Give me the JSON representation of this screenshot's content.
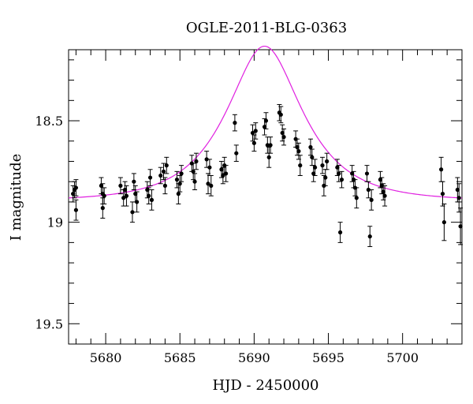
{
  "chart_data": {
    "type": "scatter",
    "title": "OGLE-2011-BLG-0363",
    "xlabel": "HJD - 2450000",
    "ylabel": "I magnitude",
    "xlim": [
      5677.5,
      5704
    ],
    "ylim": [
      19.6,
      18.15
    ],
    "y_inverted": true,
    "grid": false,
    "x_ticks": [
      5680,
      5685,
      5690,
      5695,
      5700
    ],
    "x_tick_labels": [
      "5680",
      "5685",
      "5690",
      "5695",
      "5700"
    ],
    "y_ticks": [
      18.5,
      19,
      19.5
    ],
    "y_tick_labels": [
      "18.5",
      "19",
      "19.5"
    ],
    "colors": {
      "points": "#000000",
      "model": "#e020e0"
    },
    "model": {
      "type": "microlensing",
      "t0": 5690.7,
      "u0": 0.55,
      "tE": 4.2,
      "baseline_mag": 18.895
    },
    "series": [
      {
        "points": [
          [
            5677.8,
            18.86,
            0.04
          ],
          [
            5677.9,
            18.84,
            0.04
          ],
          [
            5678.0,
            18.83,
            0.04
          ],
          [
            5678.0,
            18.94,
            0.05
          ],
          [
            5679.7,
            18.82,
            0.04
          ],
          [
            5679.8,
            18.86,
            0.05
          ],
          [
            5679.8,
            18.93,
            0.05
          ],
          [
            5679.9,
            18.87,
            0.04
          ],
          [
            5681.0,
            18.82,
            0.04
          ],
          [
            5681.2,
            18.88,
            0.04
          ],
          [
            5681.3,
            18.84,
            0.04
          ],
          [
            5681.4,
            18.87,
            0.05
          ],
          [
            5681.8,
            18.95,
            0.05
          ],
          [
            5681.9,
            18.8,
            0.04
          ],
          [
            5682.0,
            18.86,
            0.04
          ],
          [
            5682.1,
            18.9,
            0.05
          ],
          [
            5682.8,
            18.84,
            0.04
          ],
          [
            5682.9,
            18.87,
            0.04
          ],
          [
            5683.0,
            18.78,
            0.04
          ],
          [
            5683.1,
            18.89,
            0.05
          ],
          [
            5683.7,
            18.77,
            0.04
          ],
          [
            5683.9,
            18.75,
            0.04
          ],
          [
            5684.0,
            18.82,
            0.04
          ],
          [
            5684.1,
            18.72,
            0.04
          ],
          [
            5684.8,
            18.79,
            0.04
          ],
          [
            5684.9,
            18.86,
            0.05
          ],
          [
            5685.0,
            18.81,
            0.04
          ],
          [
            5685.1,
            18.76,
            0.04
          ],
          [
            5685.8,
            18.71,
            0.04
          ],
          [
            5685.9,
            18.75,
            0.04
          ],
          [
            5686.0,
            18.8,
            0.04
          ],
          [
            5686.1,
            18.7,
            0.04
          ],
          [
            5686.8,
            18.69,
            0.04
          ],
          [
            5686.9,
            18.81,
            0.05
          ],
          [
            5687.0,
            18.73,
            0.04
          ],
          [
            5687.1,
            18.82,
            0.05
          ],
          [
            5687.8,
            18.74,
            0.04
          ],
          [
            5687.9,
            18.77,
            0.04
          ],
          [
            5688.0,
            18.72,
            0.04
          ],
          [
            5688.1,
            18.76,
            0.04
          ],
          [
            5688.7,
            18.51,
            0.04
          ],
          [
            5688.8,
            18.66,
            0.04
          ],
          [
            5689.9,
            18.56,
            0.04
          ],
          [
            5690.0,
            18.61,
            0.04
          ],
          [
            5690.1,
            18.55,
            0.04
          ],
          [
            5690.7,
            18.53,
            0.04
          ],
          [
            5690.8,
            18.5,
            0.04
          ],
          [
            5690.9,
            18.62,
            0.04
          ],
          [
            5691.0,
            18.68,
            0.05
          ],
          [
            5691.1,
            18.62,
            0.04
          ],
          [
            5691.7,
            18.46,
            0.04
          ],
          [
            5691.8,
            18.47,
            0.04
          ],
          [
            5691.9,
            18.56,
            0.04
          ],
          [
            5692.0,
            18.58,
            0.04
          ],
          [
            5692.8,
            18.59,
            0.04
          ],
          [
            5692.9,
            18.63,
            0.04
          ],
          [
            5693.0,
            18.65,
            0.04
          ],
          [
            5693.1,
            18.72,
            0.05
          ],
          [
            5693.8,
            18.63,
            0.04
          ],
          [
            5693.9,
            18.68,
            0.04
          ],
          [
            5694.0,
            18.76,
            0.04
          ],
          [
            5694.1,
            18.73,
            0.04
          ],
          [
            5694.6,
            18.72,
            0.04
          ],
          [
            5694.7,
            18.82,
            0.05
          ],
          [
            5694.8,
            18.78,
            0.04
          ],
          [
            5694.9,
            18.7,
            0.04
          ],
          [
            5695.6,
            18.73,
            0.04
          ],
          [
            5695.7,
            18.76,
            0.04
          ],
          [
            5695.8,
            19.05,
            0.05
          ],
          [
            5695.9,
            18.79,
            0.04
          ],
          [
            5696.6,
            18.76,
            0.04
          ],
          [
            5696.7,
            18.79,
            0.04
          ],
          [
            5696.8,
            18.83,
            0.04
          ],
          [
            5696.9,
            18.88,
            0.05
          ],
          [
            5697.6,
            18.76,
            0.04
          ],
          [
            5697.7,
            18.84,
            0.04
          ],
          [
            5697.8,
            19.07,
            0.05
          ],
          [
            5697.9,
            18.89,
            0.05
          ],
          [
            5698.5,
            18.79,
            0.04
          ],
          [
            5698.6,
            18.82,
            0.04
          ],
          [
            5698.7,
            18.85,
            0.04
          ],
          [
            5698.8,
            18.87,
            0.05
          ],
          [
            5702.6,
            18.74,
            0.06
          ],
          [
            5702.7,
            18.86,
            0.06
          ],
          [
            5702.8,
            19.0,
            0.09
          ],
          [
            5703.7,
            18.84,
            0.06
          ],
          [
            5703.8,
            18.88,
            0.07
          ],
          [
            5703.9,
            19.02,
            0.09
          ]
        ]
      }
    ]
  }
}
